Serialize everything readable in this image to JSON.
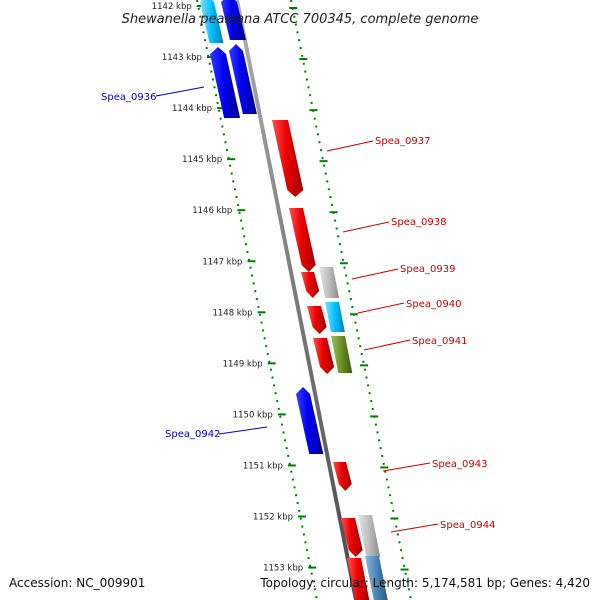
{
  "title": "Shewanella pealeana ATCC 700345, complete genome",
  "footer": {
    "accession": "Accession: NC_009901",
    "topology": "Topology: circular; Length: 5,174,581 bp; Genes: 4,420"
  },
  "ticks": [
    {
      "label": "1142 kbp"
    },
    {
      "label": "1143 kbp"
    },
    {
      "label": "1144 kbp"
    },
    {
      "label": "1145 kbp"
    },
    {
      "label": "1146 kbp"
    },
    {
      "label": "1147 kbp"
    },
    {
      "label": "1148 kbp"
    },
    {
      "label": "1149 kbp"
    },
    {
      "label": "1150 kbp"
    },
    {
      "label": "1151 kbp"
    },
    {
      "label": "1152 kbp"
    },
    {
      "label": "1153 kbp"
    }
  ],
  "gene_labels": [
    {
      "name": "Spea_0936",
      "strand": "minus"
    },
    {
      "name": "Spea_0937",
      "strand": "plus"
    },
    {
      "name": "Spea_0938",
      "strand": "plus"
    },
    {
      "name": "Spea_0939",
      "strand": "plus"
    },
    {
      "name": "Spea_0940",
      "strand": "plus"
    },
    {
      "name": "Spea_0941",
      "strand": "plus"
    },
    {
      "name": "Spea_0942",
      "strand": "minus"
    },
    {
      "name": "Spea_0943",
      "strand": "plus"
    },
    {
      "name": "Spea_0944",
      "strand": "plus"
    }
  ],
  "colors": {
    "minus_gene": "#0000ee",
    "plus_gene": "#ee0000",
    "backbone": "#808080",
    "ruler": "#008000",
    "gray_feature": "#b8b8b8",
    "cyan_feature": "#00bfff",
    "olive_feature": "#6b8e23",
    "steel_feature": "#4682b4",
    "minus_label": "#0000cc",
    "plus_label": "#cc0000"
  }
}
